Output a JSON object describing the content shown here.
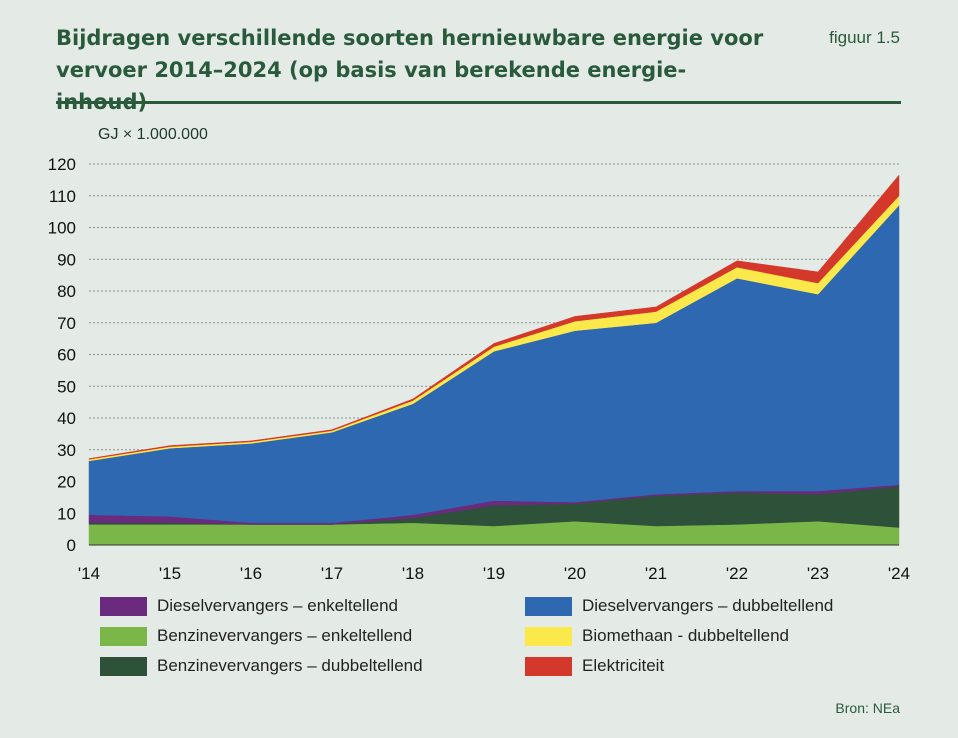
{
  "header": {
    "title": "Bijdragen verschillende soorten hernieuwbare energie voor vervoer 2014–2024 (op basis van berekende energie-inhoud)",
    "figure_label": "figuur 1.5"
  },
  "source": "Bron: NEa",
  "chart_data": {
    "type": "area",
    "stacked": true,
    "ylabel": "GJ × 1.000.000",
    "ylim": [
      0,
      120
    ],
    "yticks": [
      0,
      10,
      20,
      30,
      40,
      50,
      60,
      70,
      80,
      90,
      100,
      110,
      120
    ],
    "grid": "horizontal dotted",
    "categories": [
      "'14",
      "'15",
      "'16",
      "'17",
      "'18",
      "'19",
      "'20",
      "'21",
      "'22",
      "'23",
      "'24"
    ],
    "series": [
      {
        "name": "Benzinevervangers – enkeltellend",
        "color": "#7ab648",
        "values": [
          6.5,
          6.5,
          6.5,
          6.5,
          7,
          6,
          7.5,
          6,
          6.5,
          7.5,
          5.5
        ]
      },
      {
        "name": "Benzinevervangers – dubbeltellend",
        "color": "#2e5139",
        "values": [
          0.5,
          0.5,
          0,
          0,
          1.5,
          6.5,
          5.5,
          9.5,
          10,
          8.5,
          13
        ]
      },
      {
        "name": "Dieselvervangers – enkeltellend",
        "color": "#6a2a7e",
        "values": [
          2.5,
          2,
          0.5,
          0.5,
          1,
          1.5,
          0.5,
          0.5,
          0.5,
          1,
          0.5
        ]
      },
      {
        "name": "Dieselvervangers – dubbeltellend",
        "color": "#2e68b0",
        "values": [
          17,
          21.5,
          25,
          28.5,
          35,
          47,
          54,
          54,
          67,
          62,
          88
        ]
      },
      {
        "name": "Biomethaan - dubbeltellend",
        "color": "#fbe84a",
        "values": [
          0.5,
          0.5,
          0.5,
          0.5,
          1,
          1.5,
          3,
          3.5,
          3.5,
          3.5,
          3
        ]
      },
      {
        "name": "Elektriciteit",
        "color": "#d4382a",
        "values": [
          0.2,
          0.3,
          0.3,
          0.3,
          0.5,
          1,
          1.5,
          1.5,
          2,
          3.5,
          6.5
        ]
      }
    ],
    "legend": {
      "placement": "bottom",
      "order": [
        "Dieselvervangers – enkeltellend",
        "Dieselvervangers – dubbeltellend",
        "Benzinevervangers – enkeltellend",
        "Biomethaan - dubbeltellend",
        "Benzinevervangers – dubbeltellend",
        "Elektriciteit"
      ]
    }
  }
}
